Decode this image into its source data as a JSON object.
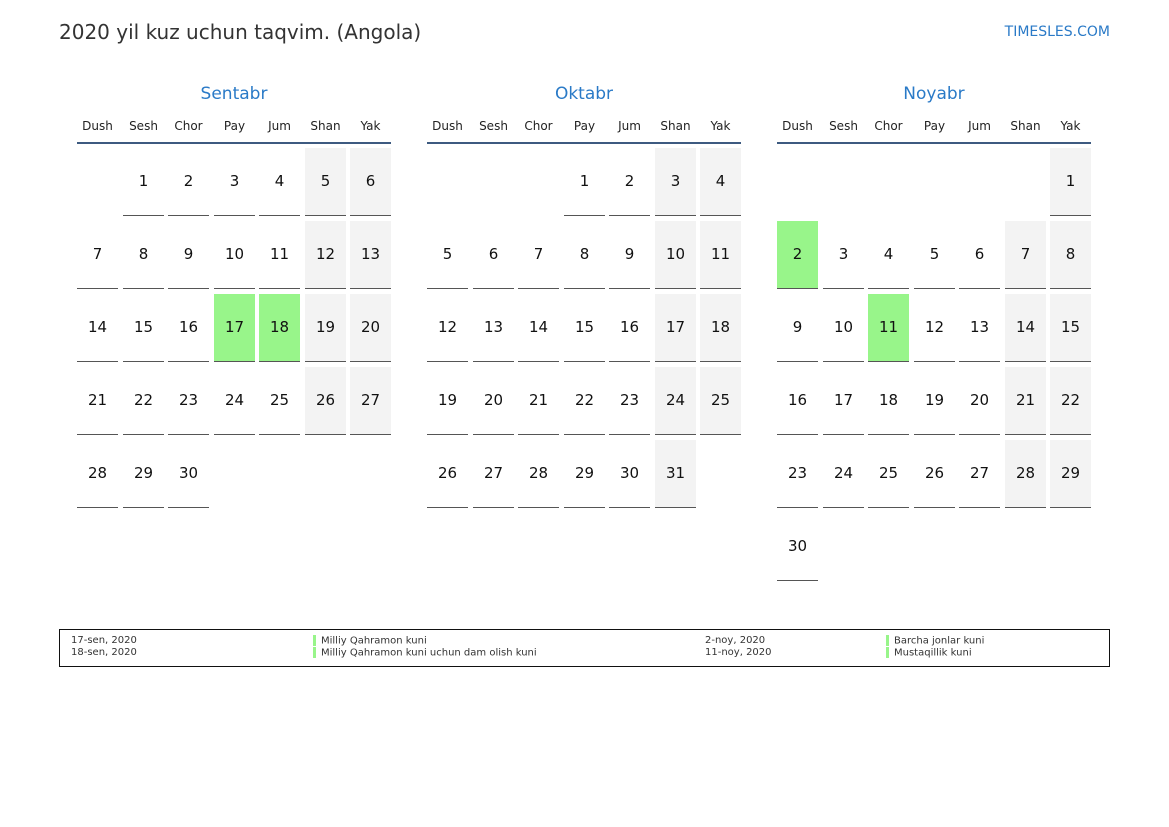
{
  "title": "2020 yil kuz uchun taqvim. (Angola)",
  "brand": "TIMESLES.COM",
  "day_names": [
    "Dush",
    "Sesh",
    "Chor",
    "Pay",
    "Jum",
    "Shan",
    "Yak"
  ],
  "colors": {
    "accent": "#2a7ac7",
    "holiday": "#98f58a",
    "weekend": "#f3f3f3"
  },
  "months": [
    {
      "name": "Sentabr",
      "first_weekday": 1,
      "days": 30,
      "holidays": [
        17,
        18
      ]
    },
    {
      "name": "Oktabr",
      "first_weekday": 3,
      "days": 31,
      "holidays": []
    },
    {
      "name": "Noyabr",
      "first_weekday": 6,
      "days": 30,
      "holidays": [
        2,
        11
      ]
    }
  ],
  "legend": [
    {
      "date": "17-sen, 2020",
      "name": "Milliy Qahramon kuni"
    },
    {
      "date": "18-sen, 2020",
      "name": "Milliy Qahramon kuni uchun dam olish kuni"
    },
    {
      "date": "2-noy, 2020",
      "name": "Barcha jonlar kuni"
    },
    {
      "date": "11-noy, 2020",
      "name": "Mustaqillik kuni"
    }
  ]
}
